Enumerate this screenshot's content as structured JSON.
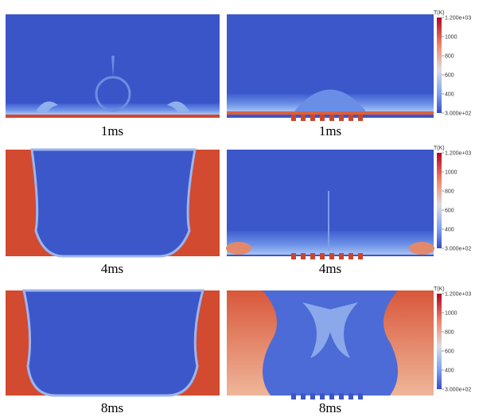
{
  "figure": {
    "panels": [
      {
        "caption": "1ms"
      },
      {
        "caption": "1ms"
      },
      {
        "caption": "4ms"
      },
      {
        "caption": "4ms"
      },
      {
        "caption": "8ms"
      },
      {
        "caption": "8ms"
      }
    ]
  },
  "colorbars": [
    {
      "title": "T(K)",
      "labels": [
        "1.200e+03",
        "1000",
        "800",
        "600",
        "400",
        "3.000e+02"
      ]
    },
    {
      "title": "T(K)",
      "labels": [
        "1.200e+03",
        "1000",
        "800",
        "600",
        "400",
        "3.000e+02"
      ]
    },
    {
      "title": "T(K)",
      "labels": [
        "1.200e+03",
        "1000",
        "800",
        "600",
        "400",
        "3.000e+02"
      ]
    }
  ]
}
